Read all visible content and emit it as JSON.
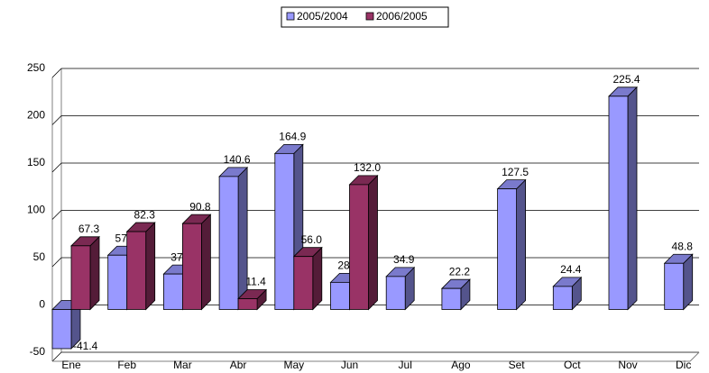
{
  "chart_data": {
    "type": "bar3d",
    "categories": [
      "Ene",
      "Feb",
      "Mar",
      "Abr",
      "May",
      "Jun",
      "Jul",
      "Ago",
      "Set",
      "Oct",
      "Nov",
      "Dic"
    ],
    "series": [
      {
        "name": "2005/2004",
        "color": "#9999ff",
        "values": [
          -41.4,
          57.4,
          37.5,
          140.6,
          164.9,
          28.7,
          34.9,
          22.2,
          127.5,
          24.4,
          225.4,
          48.8
        ]
      },
      {
        "name": "2006/2005",
        "color": "#993366",
        "values": [
          67.3,
          82.3,
          90.8,
          11.4,
          56.0,
          132.0,
          null,
          null,
          null,
          null,
          null,
          null
        ],
        "value_labels": [
          "67.3",
          "82.3",
          "90.8",
          "11.4",
          "56.0",
          "132.0",
          null,
          null,
          null,
          null,
          null,
          null
        ]
      }
    ],
    "ylim": [
      -50,
      250
    ],
    "yticks": [
      -50,
      0,
      50,
      100,
      150,
      200,
      250
    ],
    "grid": true,
    "legend": "top"
  }
}
